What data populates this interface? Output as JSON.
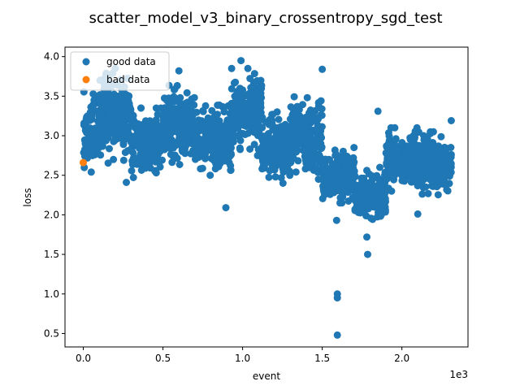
{
  "chart_data": {
    "type": "scatter",
    "title": "scatter_model_v3_binary_crossentropy_sgd_test",
    "xlabel": "event",
    "ylabel": "loss",
    "x_offset_label": "1e3",
    "xlim": [
      -0.115,
      2.415
    ],
    "ylim": [
      0.33,
      4.12
    ],
    "x_ticks": [
      0.0,
      0.5,
      1.0,
      1.5,
      2.0
    ],
    "x_tick_labels": [
      "0.0",
      "0.5",
      "1.0",
      "1.5",
      "2.0"
    ],
    "y_ticks": [
      0.5,
      1.0,
      1.5,
      2.0,
      2.5,
      3.0,
      3.5,
      4.0
    ],
    "y_tick_labels": [
      "0.5",
      "1.0",
      "1.5",
      "2.0",
      "2.5",
      "3.0",
      "3.5",
      "4.0"
    ],
    "grid": false,
    "legend_position": "top-left",
    "series": [
      {
        "name": "good data",
        "color": "#1f77b4",
        "segments": [
          {
            "x0": 0.0,
            "x1": 0.1,
            "center": 3.05,
            "spread": 0.55
          },
          {
            "x0": 0.1,
            "x1": 0.3,
            "center": 3.25,
            "spread": 0.6
          },
          {
            "x0": 0.3,
            "x1": 0.5,
            "center": 2.9,
            "spread": 0.45
          },
          {
            "x0": 0.5,
            "x1": 0.7,
            "center": 3.15,
            "spread": 0.55
          },
          {
            "x0": 0.7,
            "x1": 0.93,
            "center": 2.95,
            "spread": 0.45
          },
          {
            "x0": 0.93,
            "x1": 1.12,
            "center": 3.3,
            "spread": 0.55
          },
          {
            "x0": 1.12,
            "x1": 1.3,
            "center": 2.85,
            "spread": 0.45
          },
          {
            "x0": 1.3,
            "x1": 1.5,
            "center": 3.0,
            "spread": 0.55
          },
          {
            "x0": 1.5,
            "x1": 1.7,
            "center": 2.5,
            "spread": 0.35
          },
          {
            "x0": 1.7,
            "x1": 1.9,
            "center": 2.25,
            "spread": 0.35
          },
          {
            "x0": 1.9,
            "x1": 2.1,
            "center": 2.7,
            "spread": 0.4
          },
          {
            "x0": 2.1,
            "x1": 2.31,
            "center": 2.65,
            "spread": 0.4
          }
        ],
        "points": [
          {
            "x": 1.595,
            "y": 0.48
          },
          {
            "x": 1.595,
            "y": 0.95
          },
          {
            "x": 1.595,
            "y": 1.0
          },
          {
            "x": 1.785,
            "y": 1.5
          },
          {
            "x": 1.78,
            "y": 1.72
          },
          {
            "x": 0.895,
            "y": 2.09
          },
          {
            "x": 1.59,
            "y": 1.93
          },
          {
            "x": 2.1,
            "y": 2.01
          },
          {
            "x": 0.27,
            "y": 2.41
          },
          {
            "x": 0.99,
            "y": 3.95
          },
          {
            "x": 1.85,
            "y": 3.31
          },
          {
            "x": 2.31,
            "y": 3.19
          },
          {
            "x": 0.6,
            "y": 3.82
          },
          {
            "x": 1.5,
            "y": 3.84
          },
          {
            "x": 0.2,
            "y": 3.85
          },
          {
            "x": 0.05,
            "y": 2.54
          }
        ]
      },
      {
        "name": "bad data",
        "color": "#ff7f0e",
        "points": [
          {
            "x": 0.0,
            "y": 2.66
          }
        ]
      }
    ]
  }
}
